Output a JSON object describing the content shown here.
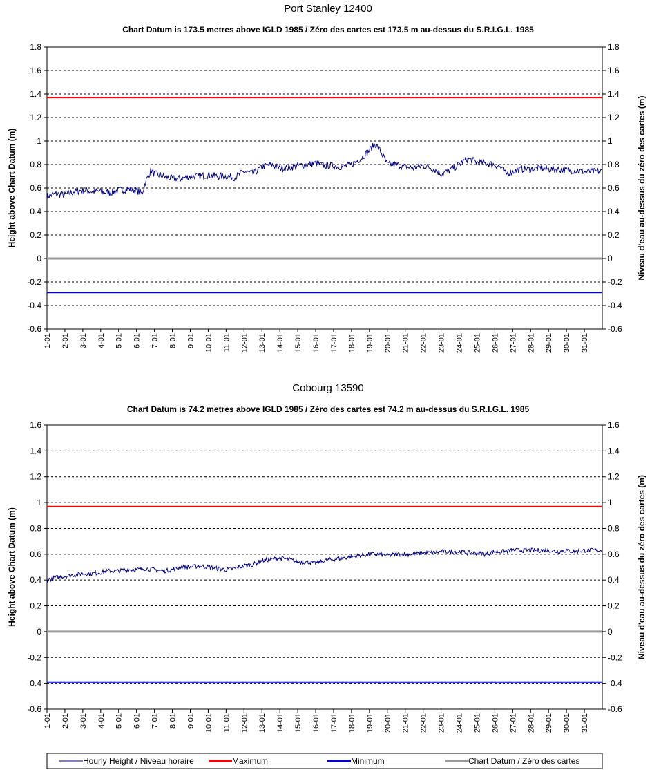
{
  "chart_data": [
    {
      "type": "line",
      "title": "Port Stanley 12400",
      "subtitle": "Chart Datum is 173.5 metres above IGLD 1985 / Zéro des cartes est 173.5 m au-dessus du S.R.I.G.L. 1985",
      "ylabel_left": "Height above Chart Datum (m)",
      "ylabel_right": "Niveau d'eau au-dessus du zéro des cartes (m)",
      "ylim": [
        -0.6,
        1.8
      ],
      "yticks": [
        "-0.6",
        "-0.4",
        "-0.2",
        "0",
        "0.2",
        "0.4",
        "0.6",
        "0.8",
        "1",
        "1.2",
        "1.4",
        "1.6",
        "1.8"
      ],
      "categories": [
        "1-01",
        "2-01",
        "3-01",
        "4-01",
        "5-01",
        "6-01",
        "7-01",
        "8-01",
        "9-01",
        "10-01",
        "11-01",
        "12-01",
        "13-01",
        "14-01",
        "15-01",
        "16-01",
        "17-01",
        "18-01",
        "19-01",
        "20-01",
        "21-01",
        "22-01",
        "23-01",
        "24-01",
        "25-01",
        "26-01",
        "27-01",
        "28-01",
        "29-01",
        "30-01",
        "31-01"
      ],
      "grid": true,
      "series": [
        {
          "name": "Hourly Height / Niveau horaire",
          "color": "#000080",
          "x": [
            1,
            1.5,
            2,
            2.5,
            3,
            3.5,
            4,
            4.5,
            5,
            5.5,
            6,
            6.3,
            6.5,
            6.8,
            7,
            7.5,
            8,
            8.5,
            9,
            9.5,
            10,
            10.5,
            11,
            11.5,
            12,
            12.5,
            13,
            13.5,
            14,
            14.5,
            15,
            15.5,
            16,
            16.5,
            17,
            17.5,
            18,
            18.5,
            19,
            19.3,
            19.6,
            20,
            20.5,
            21,
            21.5,
            22,
            22.5,
            23,
            23.5,
            24,
            24.5,
            25,
            25.5,
            26,
            26.3,
            26.6,
            27,
            27.5,
            28,
            28.5,
            29,
            29.5,
            30,
            30.5,
            31,
            31.5
          ],
          "values": [
            0.53,
            0.55,
            0.54,
            0.57,
            0.58,
            0.57,
            0.57,
            0.56,
            0.58,
            0.59,
            0.58,
            0.55,
            0.65,
            0.75,
            0.72,
            0.7,
            0.68,
            0.68,
            0.7,
            0.7,
            0.71,
            0.7,
            0.7,
            0.69,
            0.74,
            0.72,
            0.78,
            0.8,
            0.77,
            0.77,
            0.79,
            0.8,
            0.81,
            0.79,
            0.79,
            0.78,
            0.8,
            0.85,
            0.92,
            0.98,
            0.92,
            0.8,
            0.8,
            0.78,
            0.77,
            0.79,
            0.77,
            0.72,
            0.75,
            0.8,
            0.85,
            0.82,
            0.81,
            0.8,
            0.78,
            0.72,
            0.74,
            0.76,
            0.76,
            0.77,
            0.76,
            0.76,
            0.75,
            0.75,
            0.74,
            0.74
          ]
        },
        {
          "name": "Maximum",
          "color": "#ff0000",
          "constant": 1.37
        },
        {
          "name": "Minimum",
          "color": "#0000cc",
          "constant": -0.29
        },
        {
          "name": "Chart Datum / Zéro des cartes",
          "color": "#999999",
          "constant": 0
        }
      ]
    },
    {
      "type": "line",
      "title": "Cobourg 13590",
      "subtitle": "Chart Datum is 74.2 metres above IGLD 1985 / Zéro des cartes est 74.2 m au-dessus du S.R.I.G.L. 1985",
      "ylabel_left": "Height above Chart Datum (m)",
      "ylabel_right": "Niveau d'eau au-dessus du zéro des cartes (m)",
      "ylim": [
        -0.6,
        1.6
      ],
      "yticks": [
        "-0.6",
        "-0.4",
        "-0.2",
        "0",
        "0.2",
        "0.4",
        "0.6",
        "0.8",
        "1",
        "1.2",
        "1.4",
        "1.6"
      ],
      "categories": [
        "1-01",
        "2-01",
        "3-01",
        "4-01",
        "5-01",
        "6-01",
        "7-01",
        "8-01",
        "9-01",
        "10-01",
        "11-01",
        "12-01",
        "13-01",
        "14-01",
        "15-01",
        "16-01",
        "17-01",
        "18-01",
        "19-01",
        "20-01",
        "21-01",
        "22-01",
        "23-01",
        "24-01",
        "25-01",
        "26-01",
        "27-01",
        "28-01",
        "29-01",
        "30-01",
        "31-01"
      ],
      "grid": true,
      "series": [
        {
          "name": "Hourly Height / Niveau horaire",
          "color": "#000080",
          "x": [
            1,
            1.5,
            2,
            2.5,
            3,
            3.5,
            4,
            4.5,
            5,
            5.5,
            6,
            6.5,
            7,
            7.5,
            8,
            8.5,
            9,
            9.5,
            10,
            10.5,
            11,
            11.5,
            12,
            12.5,
            13,
            13.5,
            14,
            14.5,
            15,
            15.5,
            16,
            16.5,
            17,
            17.5,
            18,
            18.5,
            19,
            19.5,
            20,
            20.5,
            21,
            21.5,
            22,
            22.5,
            23,
            23.5,
            24,
            24.5,
            25,
            25.5,
            26,
            26.5,
            27,
            27.5,
            28,
            28.5,
            29,
            29.5,
            30,
            30.5,
            31,
            31.5
          ],
          "values": [
            0.4,
            0.42,
            0.43,
            0.44,
            0.45,
            0.45,
            0.46,
            0.47,
            0.47,
            0.48,
            0.48,
            0.49,
            0.48,
            0.47,
            0.48,
            0.5,
            0.5,
            0.51,
            0.5,
            0.49,
            0.48,
            0.49,
            0.51,
            0.52,
            0.55,
            0.56,
            0.57,
            0.56,
            0.54,
            0.54,
            0.53,
            0.55,
            0.56,
            0.57,
            0.58,
            0.59,
            0.6,
            0.6,
            0.59,
            0.6,
            0.6,
            0.6,
            0.61,
            0.61,
            0.62,
            0.62,
            0.62,
            0.61,
            0.61,
            0.6,
            0.62,
            0.62,
            0.63,
            0.63,
            0.63,
            0.63,
            0.63,
            0.62,
            0.63,
            0.62,
            0.63,
            0.63
          ]
        },
        {
          "name": "Maximum",
          "color": "#ff0000",
          "constant": 0.97
        },
        {
          "name": "Minimum",
          "color": "#0000cc",
          "constant": -0.39
        },
        {
          "name": "Chart Datum / Zéro des cartes",
          "color": "#999999",
          "constant": 0
        }
      ]
    }
  ],
  "legend": [
    {
      "label": "Hourly Height / Niveau horaire",
      "color": "#000080",
      "thin": true
    },
    {
      "label": "Maximum",
      "color": "#ff0000",
      "thin": false
    },
    {
      "label": "Minimum",
      "color": "#0000cc",
      "thin": false
    },
    {
      "label": "Chart Datum / Zéro des cartes",
      "color": "#999999",
      "thin": false
    }
  ]
}
